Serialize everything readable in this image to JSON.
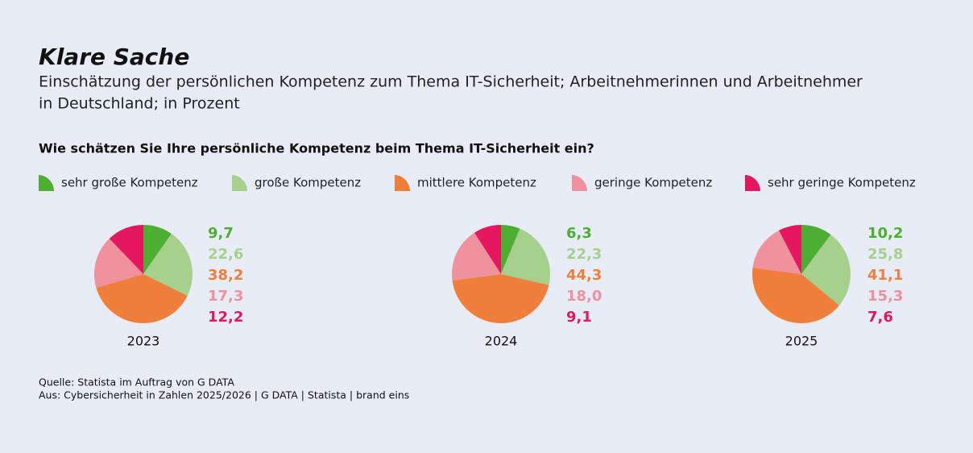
{
  "title": "Klare Sache",
  "subtitle": [
    "Einschätzung der persönlichen Kompetenz zum Thema IT-Sicherheit; Arbeitnehmerinnen und Arbeitnehmer",
    "in Deutschland; in Prozent"
  ],
  "source": [
    "Quelle: Statista im Auftrag von G DATA",
    "Aus: Cybersicherheit in Zahlen 2025/2026 | G DATA | Statista | brand eins"
  ],
  "chart_data": {
    "type": "pie",
    "title": "Wie schätzen Sie Ihre persönliche Kompetenz beim Thema IT-Sicherheit ein?",
    "categories": [
      "sehr große Kompetenz",
      "große Kompetenz",
      "mittlere Kompetenz",
      "geringe Kompetenz",
      "sehr geringe Kompetenz"
    ],
    "colors": [
      "#4daf32",
      "#a8d08d",
      "#f07f3c",
      "#f0919e",
      "#e5175f"
    ],
    "series": [
      {
        "name": "2023",
        "values": [
          9.7,
          22.6,
          38.2,
          17.3,
          12.2
        ],
        "value_labels": [
          "9,7",
          "22,6",
          "38,2",
          "17,3",
          "12,2"
        ]
      },
      {
        "name": "2024",
        "values": [
          6.3,
          22.3,
          44.3,
          18.0,
          9.1
        ],
        "value_labels": [
          "6,3",
          "22,3",
          "44,3",
          "18,0",
          "9,1"
        ]
      },
      {
        "name": "2025",
        "values": [
          10.2,
          25.8,
          41.1,
          15.3,
          7.6
        ],
        "value_labels": [
          "10,2",
          "25,8",
          "41,1",
          "15,3",
          "7,6"
        ]
      }
    ]
  }
}
